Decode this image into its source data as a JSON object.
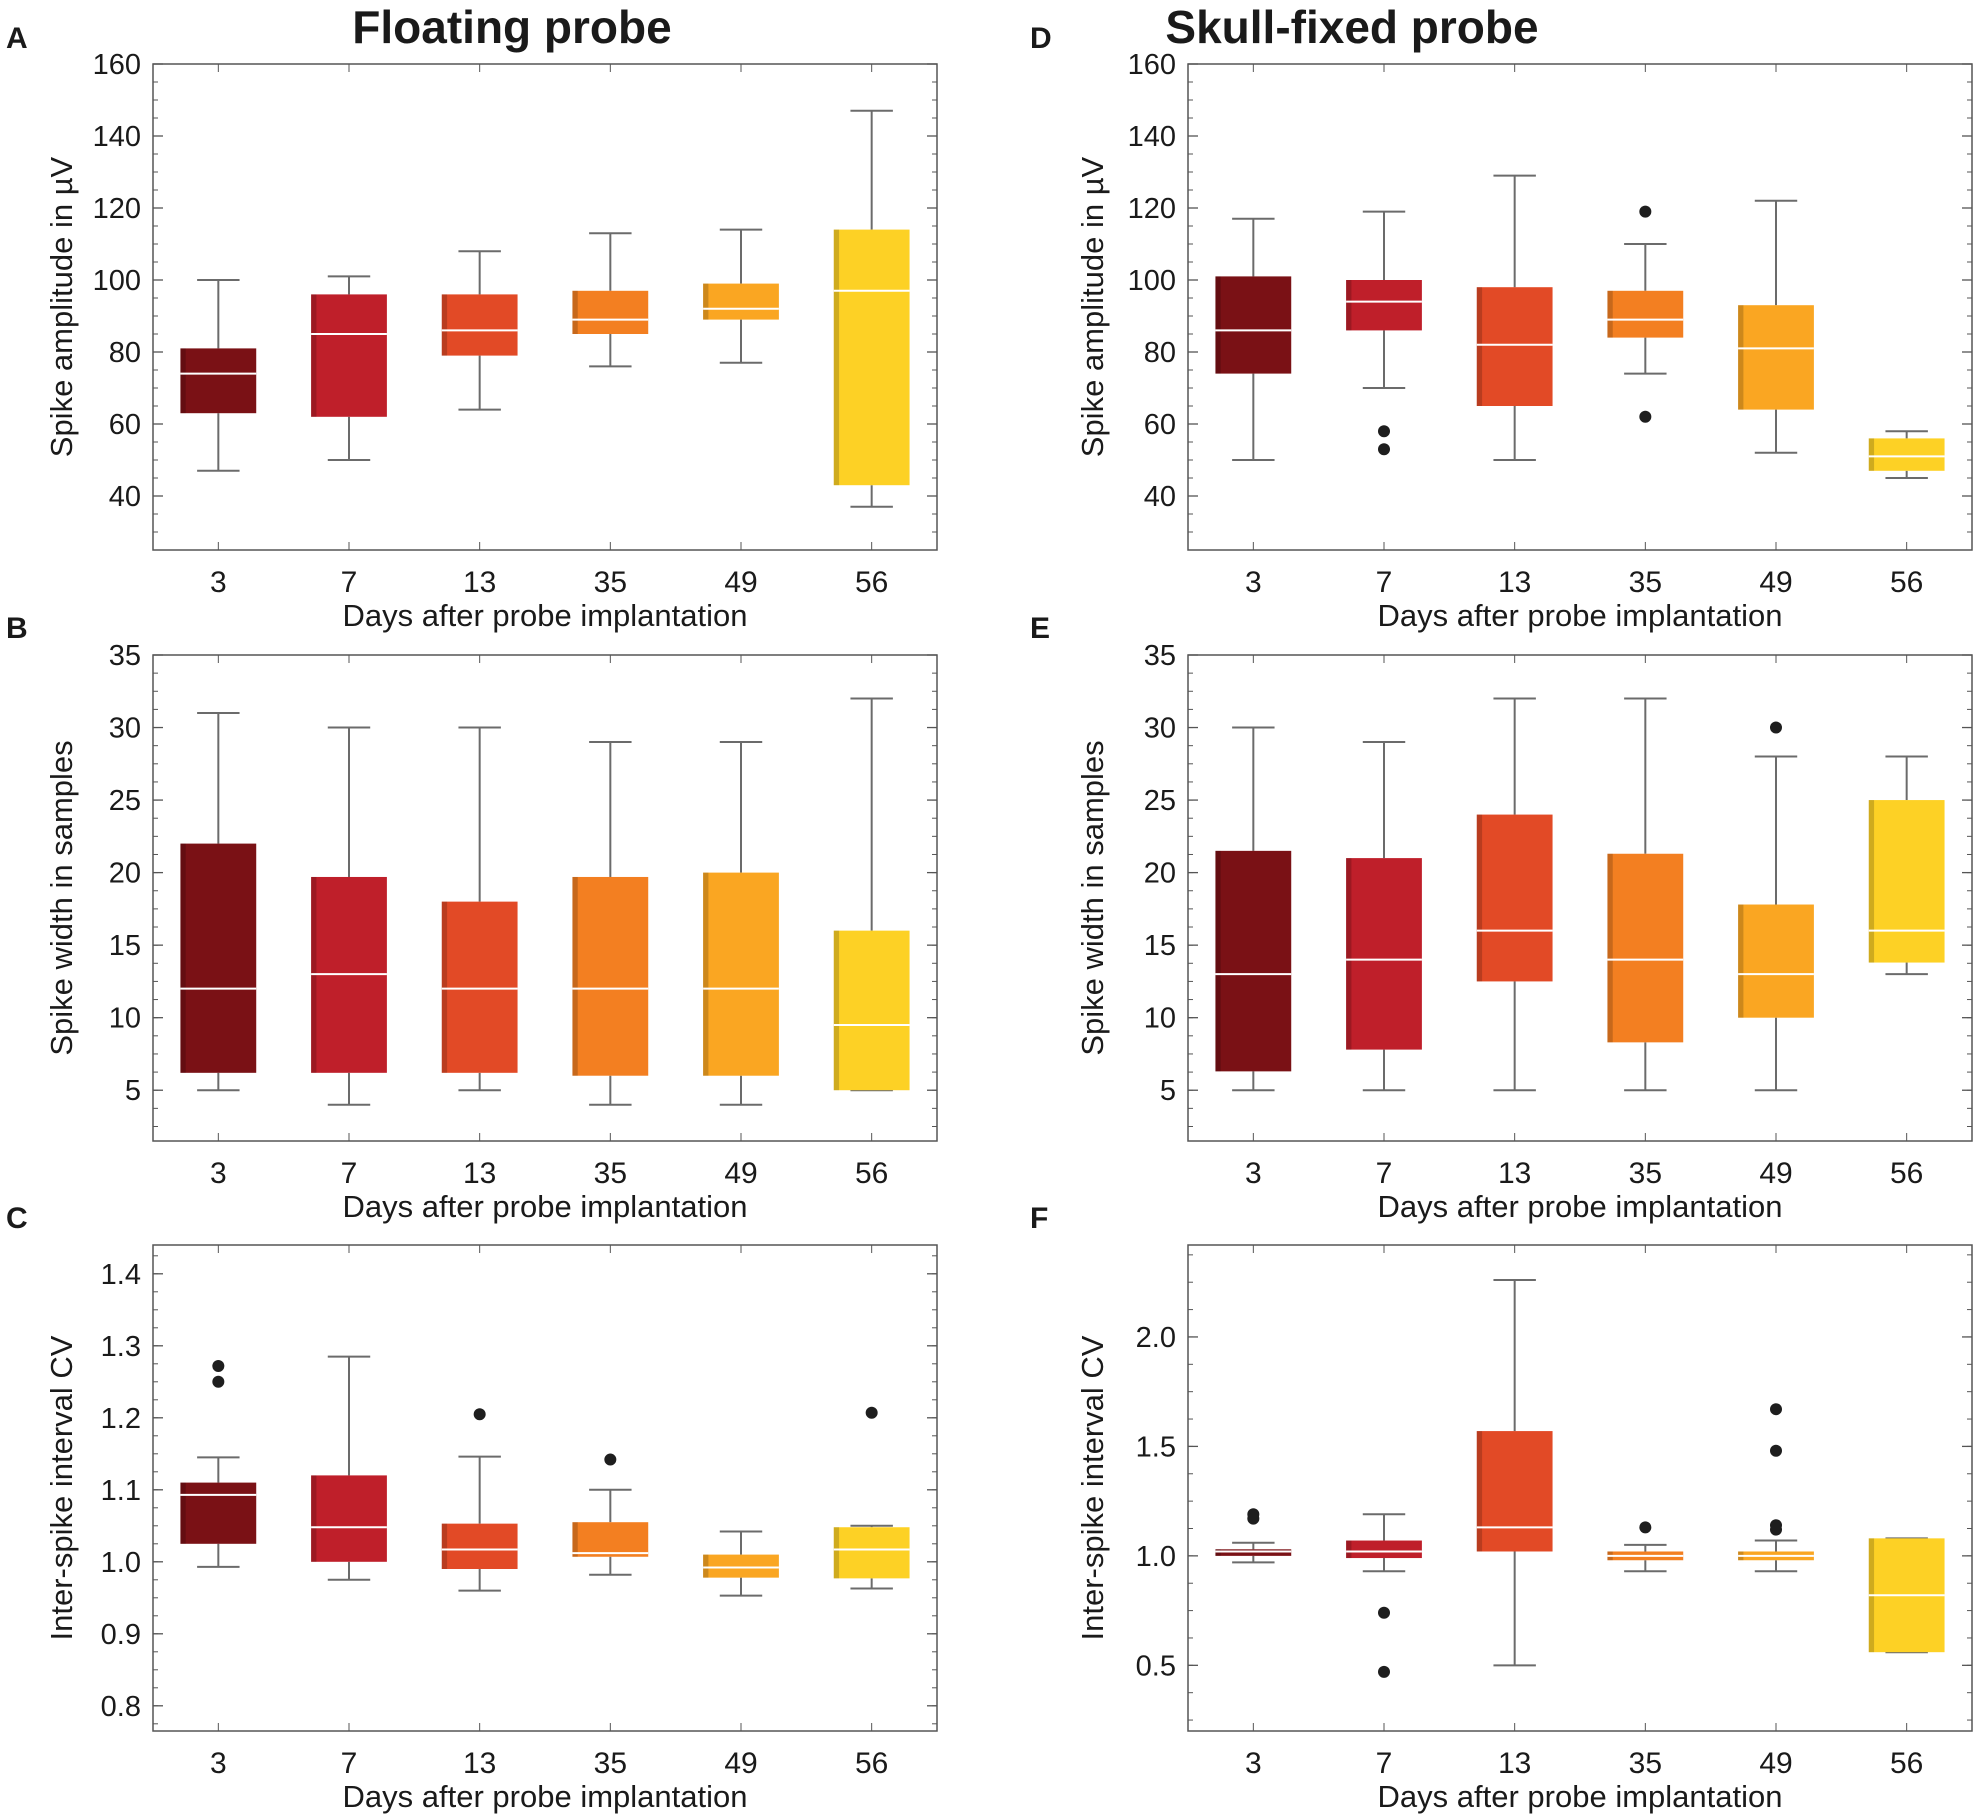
{
  "columns": [
    {
      "title": "Floating probe"
    },
    {
      "title": "Skull-fixed probe"
    }
  ],
  "box_colors": [
    "#7a1115",
    "#bf1f2a",
    "#e24a26",
    "#f37f21",
    "#faa622",
    "#fdd125"
  ],
  "chart_data": [
    {
      "type": "box",
      "panel": "A",
      "column": 0,
      "row": 0,
      "categories": [
        "3",
        "7",
        "13",
        "35",
        "49",
        "56"
      ],
      "xlabel": "Days after probe implantation",
      "ylabel": "Spike amplitude in µV",
      "ylim": [
        25,
        160
      ],
      "yticks": [
        40,
        60,
        80,
        100,
        120,
        140,
        160
      ],
      "ytick_labels": [
        "40",
        "60",
        "80",
        "100",
        "120",
        "140",
        "160"
      ],
      "boxes": [
        {
          "q1": 63,
          "median": 74,
          "q3": 81,
          "whislo": 47,
          "whishi": 100,
          "outliers": []
        },
        {
          "q1": 62,
          "median": 85,
          "q3": 96,
          "whislo": 50,
          "whishi": 101,
          "outliers": []
        },
        {
          "q1": 79,
          "median": 86,
          "q3": 96,
          "whislo": 64,
          "whishi": 108,
          "outliers": []
        },
        {
          "q1": 85,
          "median": 89,
          "q3": 97,
          "whislo": 76,
          "whishi": 113,
          "outliers": []
        },
        {
          "q1": 89,
          "median": 92,
          "q3": 99,
          "whislo": 77,
          "whishi": 114,
          "outliers": []
        },
        {
          "q1": 43,
          "median": 97,
          "q3": 114,
          "whislo": 37,
          "whishi": 147,
          "outliers": []
        }
      ]
    },
    {
      "type": "box",
      "panel": "B",
      "column": 0,
      "row": 1,
      "categories": [
        "3",
        "7",
        "13",
        "35",
        "49",
        "56"
      ],
      "xlabel": "Days after probe implantation",
      "ylabel": "Spike width in samples",
      "ylim": [
        1.5,
        35
      ],
      "yticks": [
        5,
        10,
        15,
        20,
        25,
        30,
        35
      ],
      "ytick_labels": [
        "5",
        "10",
        "15",
        "20",
        "25",
        "30",
        "35"
      ],
      "boxes": [
        {
          "q1": 6.2,
          "median": 12,
          "q3": 22,
          "whislo": 5,
          "whishi": 31,
          "outliers": []
        },
        {
          "q1": 6.2,
          "median": 13,
          "q3": 19.7,
          "whislo": 4,
          "whishi": 30,
          "outliers": []
        },
        {
          "q1": 6.2,
          "median": 12,
          "q3": 18,
          "whislo": 5,
          "whishi": 30,
          "outliers": []
        },
        {
          "q1": 6,
          "median": 12,
          "q3": 19.7,
          "whislo": 4,
          "whishi": 29,
          "outliers": []
        },
        {
          "q1": 6,
          "median": 12,
          "q3": 20,
          "whislo": 4,
          "whishi": 29,
          "outliers": []
        },
        {
          "q1": 5,
          "median": 9.5,
          "q3": 16,
          "whislo": 5,
          "whishi": 32,
          "outliers": []
        }
      ]
    },
    {
      "type": "box",
      "panel": "C",
      "column": 0,
      "row": 2,
      "categories": [
        "3",
        "7",
        "13",
        "35",
        "49",
        "56"
      ],
      "xlabel": "Days after probe implantation",
      "ylabel": "Inter-spike interval CV",
      "ylim": [
        0.765,
        1.44
      ],
      "yticks": [
        0.8,
        0.9,
        1.0,
        1.1,
        1.2,
        1.3,
        1.4
      ],
      "ytick_labels": [
        "0.8",
        "0.9",
        "1.0",
        "1.1",
        "1.2",
        "1.3",
        "1.4"
      ],
      "boxes": [
        {
          "q1": 1.025,
          "median": 1.093,
          "q3": 1.11,
          "whislo": 0.993,
          "whishi": 1.145,
          "outliers": [
            1.25,
            1.272
          ]
        },
        {
          "q1": 1.0,
          "median": 1.048,
          "q3": 1.12,
          "whislo": 0.975,
          "whishi": 1.285,
          "outliers": []
        },
        {
          "q1": 0.99,
          "median": 1.017,
          "q3": 1.053,
          "whislo": 0.96,
          "whishi": 1.146,
          "outliers": [
            1.205
          ]
        },
        {
          "q1": 1.007,
          "median": 1.012,
          "q3": 1.055,
          "whislo": 0.982,
          "whishi": 1.1,
          "outliers": [
            1.142
          ]
        },
        {
          "q1": 0.978,
          "median": 0.992,
          "q3": 1.01,
          "whislo": 0.953,
          "whishi": 1.042,
          "outliers": []
        },
        {
          "q1": 0.977,
          "median": 1.017,
          "q3": 1.048,
          "whislo": 0.963,
          "whishi": 1.05,
          "outliers": [
            1.207
          ]
        }
      ]
    },
    {
      "type": "box",
      "panel": "D",
      "column": 1,
      "row": 0,
      "categories": [
        "3",
        "7",
        "13",
        "35",
        "49",
        "56"
      ],
      "xlabel": "Days after probe implantation",
      "ylabel": "Spike amplitude in µV",
      "ylim": [
        25,
        160
      ],
      "yticks": [
        40,
        60,
        80,
        100,
        120,
        140,
        160
      ],
      "ytick_labels": [
        "40",
        "60",
        "80",
        "100",
        "120",
        "140",
        "160"
      ],
      "boxes": [
        {
          "q1": 74,
          "median": 86,
          "q3": 101,
          "whislo": 50,
          "whishi": 117,
          "outliers": []
        },
        {
          "q1": 86,
          "median": 94,
          "q3": 100,
          "whislo": 70,
          "whishi": 119,
          "outliers": [
            58,
            53
          ]
        },
        {
          "q1": 65,
          "median": 82,
          "q3": 98,
          "whislo": 50,
          "whishi": 129,
          "outliers": []
        },
        {
          "q1": 84,
          "median": 89,
          "q3": 97,
          "whislo": 74,
          "whishi": 110,
          "outliers": [
            119,
            62
          ]
        },
        {
          "q1": 64,
          "median": 81,
          "q3": 93,
          "whislo": 52,
          "whishi": 122,
          "outliers": []
        },
        {
          "q1": 47,
          "median": 51,
          "q3": 56,
          "whislo": 45,
          "whishi": 58,
          "outliers": []
        }
      ]
    },
    {
      "type": "box",
      "panel": "E",
      "column": 1,
      "row": 1,
      "categories": [
        "3",
        "7",
        "13",
        "35",
        "49",
        "56"
      ],
      "xlabel": "Days after probe implantation",
      "ylabel": "Spike width in samples",
      "ylim": [
        1.5,
        35
      ],
      "yticks": [
        5,
        10,
        15,
        20,
        25,
        30,
        35
      ],
      "ytick_labels": [
        "5",
        "10",
        "15",
        "20",
        "25",
        "30",
        "35"
      ],
      "boxes": [
        {
          "q1": 6.3,
          "median": 13,
          "q3": 21.5,
          "whislo": 5,
          "whishi": 30,
          "outliers": []
        },
        {
          "q1": 7.8,
          "median": 14,
          "q3": 21,
          "whislo": 5,
          "whishi": 29,
          "outliers": []
        },
        {
          "q1": 12.5,
          "median": 16,
          "q3": 24,
          "whislo": 5,
          "whishi": 32,
          "outliers": []
        },
        {
          "q1": 8.3,
          "median": 14,
          "q3": 21.3,
          "whislo": 5,
          "whishi": 32,
          "outliers": []
        },
        {
          "q1": 10,
          "median": 13,
          "q3": 17.8,
          "whislo": 5,
          "whishi": 28,
          "outliers": [
            30
          ]
        },
        {
          "q1": 13.8,
          "median": 16,
          "q3": 25,
          "whislo": 13,
          "whishi": 28,
          "outliers": []
        }
      ]
    },
    {
      "type": "box",
      "panel": "F",
      "column": 1,
      "row": 2,
      "categories": [
        "3",
        "7",
        "13",
        "35",
        "49",
        "56"
      ],
      "xlabel": "Days after probe implantation",
      "ylabel": "Inter-spike interval CV",
      "ylim": [
        0.2,
        2.42
      ],
      "yticks": [
        0.5,
        1.0,
        1.5,
        2.0
      ],
      "ytick_labels": [
        "0.5",
        "1.0",
        "1.5",
        "2.0"
      ],
      "boxes": [
        {
          "q1": 1.0,
          "median": 1.02,
          "q3": 1.03,
          "whislo": 0.97,
          "whishi": 1.06,
          "outliers": [
            1.19,
            1.17
          ]
        },
        {
          "q1": 0.99,
          "median": 1.02,
          "q3": 1.07,
          "whislo": 0.93,
          "whishi": 1.19,
          "outliers": [
            0.74,
            0.47
          ]
        },
        {
          "q1": 1.02,
          "median": 1.13,
          "q3": 1.57,
          "whislo": 0.5,
          "whishi": 2.26,
          "outliers": []
        },
        {
          "q1": 0.98,
          "median": 1.0,
          "q3": 1.02,
          "whislo": 0.93,
          "whishi": 1.05,
          "outliers": [
            1.13
          ]
        },
        {
          "q1": 0.98,
          "median": 1.0,
          "q3": 1.02,
          "whislo": 0.93,
          "whishi": 1.07,
          "outliers": [
            1.67,
            1.48,
            1.14,
            1.12
          ]
        },
        {
          "q1": 0.56,
          "median": 0.82,
          "q3": 1.08,
          "whislo": 0.56,
          "whishi": 1.08,
          "outliers": []
        }
      ]
    }
  ]
}
